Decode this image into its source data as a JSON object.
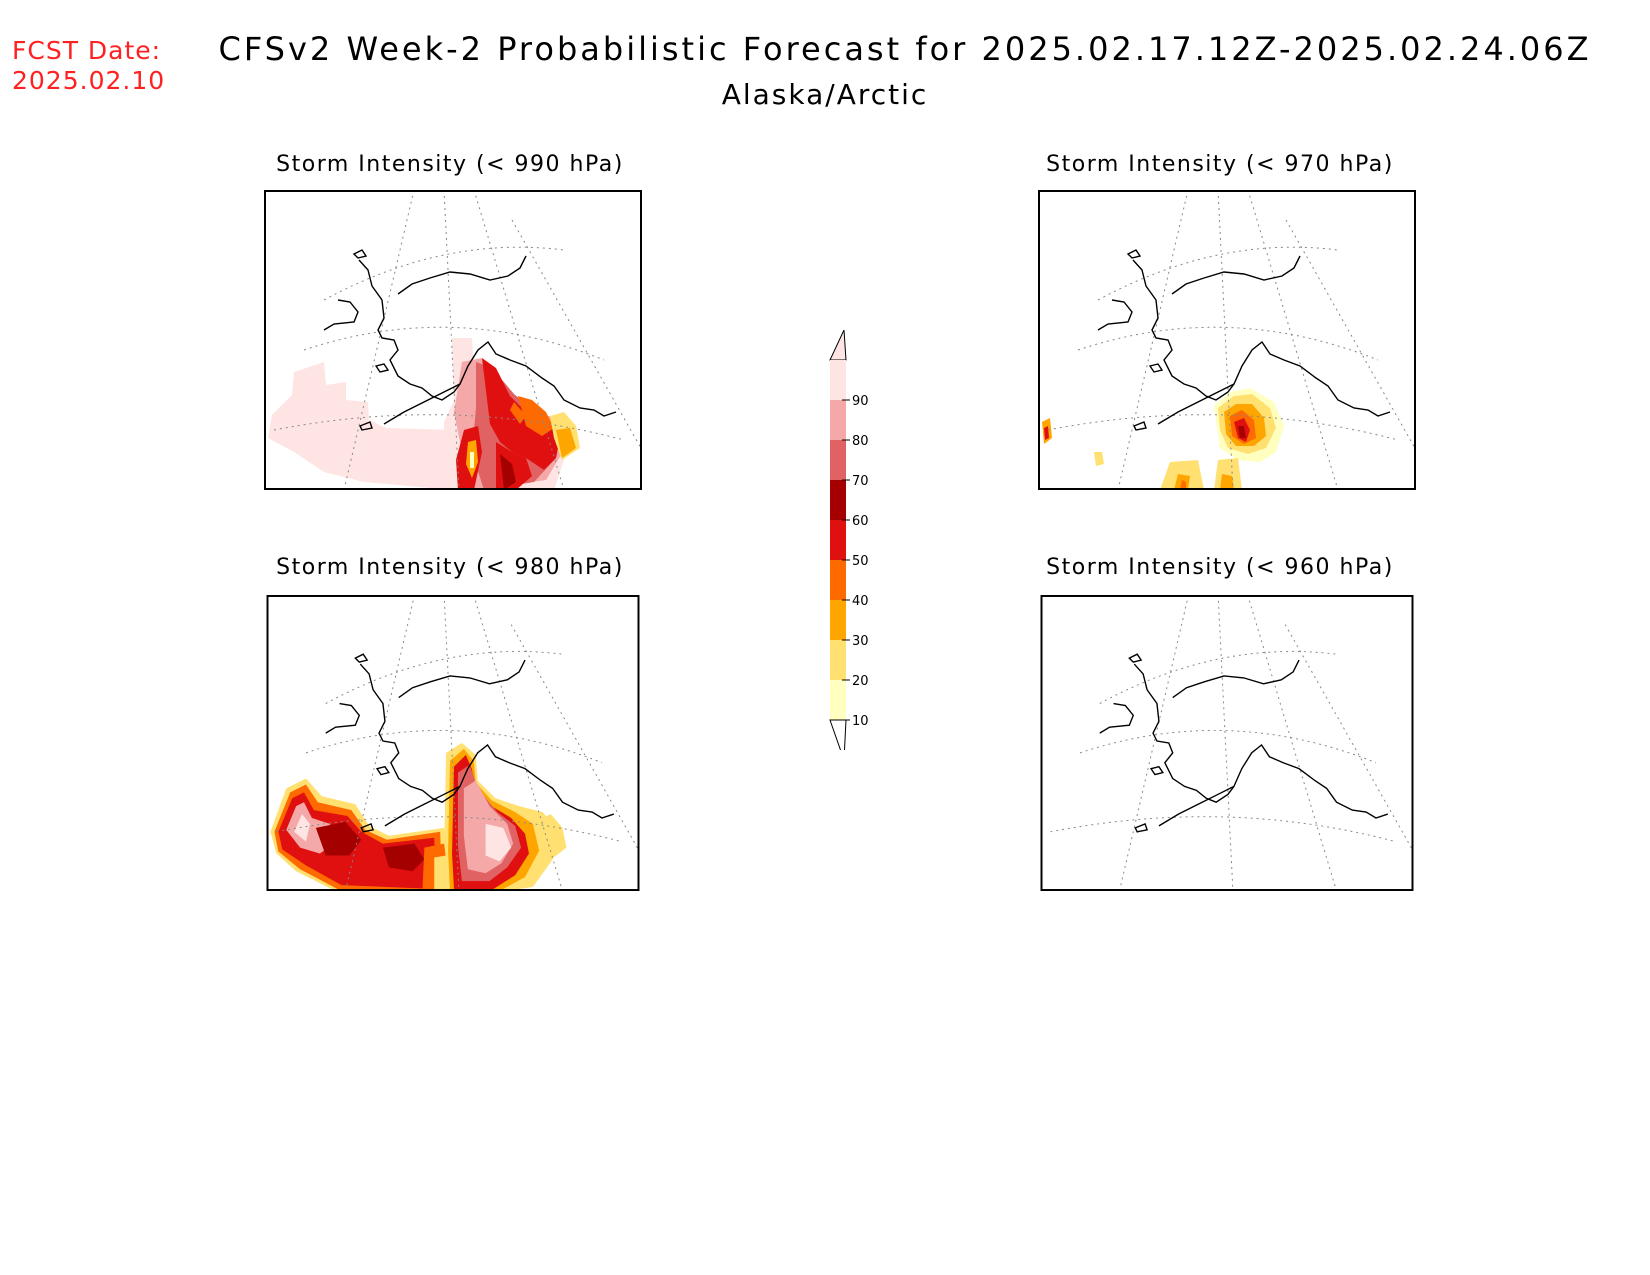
{
  "fcst_date": {
    "label": "FCST Date:",
    "value": "2025.02.10"
  },
  "title": "CFSv2 Week-2 Probabilistic Forecast for 2025.02.17.12Z-2025.02.24.06Z",
  "subtitle": "Alaska/Arctic",
  "panels": [
    {
      "id": "p990",
      "title": "Storm Intensity (< 990 hPa)"
    },
    {
      "id": "p970",
      "title": "Storm Intensity (< 970 hPa)"
    },
    {
      "id": "p980",
      "title": "Storm Intensity (< 980 hPa)"
    },
    {
      "id": "p960",
      "title": "Storm Intensity (< 960 hPa)"
    }
  ],
  "colorbar": {
    "ticks": [
      "90",
      "80",
      "70",
      "60",
      "50",
      "40",
      "30",
      "20",
      "10"
    ],
    "colors": [
      "#ffe4e4",
      "#f4a8a8",
      "#e06262",
      "#a50000",
      "#e01010",
      "#ff6a00",
      "#ffa500",
      "#ffe070",
      "#ffffc0"
    ]
  }
}
